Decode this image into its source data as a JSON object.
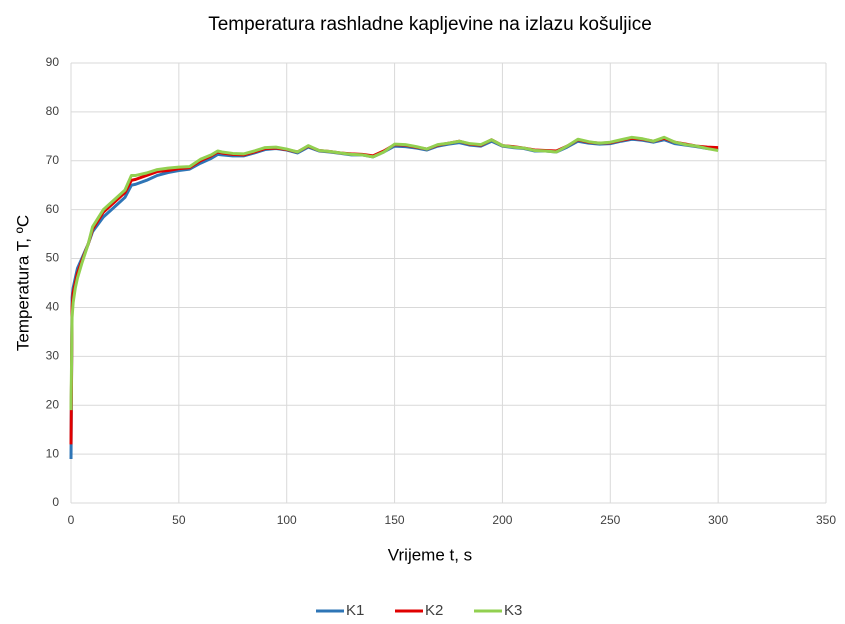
{
  "chart_data": {
    "type": "line",
    "title": "Temperatura rashladne kapljevine na izlazu košuljice",
    "x_label": "Vrijeme t, s",
    "y_label": "Temperatura T, ºC",
    "xlim": [
      0,
      350
    ],
    "xticks": [
      0,
      50,
      100,
      150,
      200,
      250,
      300,
      350
    ],
    "ylim": [
      0,
      90
    ],
    "yticks": [
      0,
      10,
      20,
      30,
      40,
      50,
      60,
      70,
      80,
      90
    ],
    "grid": true,
    "legend": "bottom",
    "x": [
      0,
      0.5,
      1,
      2,
      3,
      5,
      8,
      10,
      15,
      20,
      25,
      28,
      30,
      35,
      40,
      45,
      50,
      55,
      60,
      65,
      68,
      70,
      75,
      80,
      85,
      90,
      95,
      100,
      105,
      110,
      115,
      120,
      125,
      130,
      135,
      140,
      145,
      150,
      155,
      160,
      165,
      170,
      175,
      180,
      185,
      190,
      195,
      200,
      205,
      210,
      215,
      220,
      225,
      230,
      235,
      240,
      245,
      250,
      255,
      260,
      265,
      270,
      275,
      280,
      285,
      290,
      295,
      300
    ],
    "series": [
      {
        "name": "K1",
        "color": "#2e75b6",
        "values": [
          9,
          42,
          44,
          46,
          48,
          50,
          53,
          55.5,
          58.5,
          60.5,
          62.5,
          65,
          65.2,
          66,
          67,
          67.6,
          68,
          68.3,
          69.5,
          70.5,
          71.3,
          71.2,
          71,
          71,
          71.6,
          72.3,
          72.5,
          72.2,
          71.6,
          72.8,
          72,
          71.8,
          71.5,
          71.2,
          71.2,
          70.8,
          71.8,
          73,
          72.9,
          72.6,
          72.2,
          73,
          73.4,
          73.7,
          73.2,
          73,
          74,
          73,
          72.7,
          72.5,
          72,
          72,
          71.8,
          72.8,
          74,
          73.6,
          73.4,
          73.5,
          74,
          74.4,
          74.2,
          73.8,
          74.3,
          73.5,
          73.2,
          72.9,
          72.5,
          72.3
        ]
      },
      {
        "name": "K2",
        "color": "#e00000",
        "values": [
          12,
          40,
          43,
          45,
          47,
          49.5,
          53,
          56,
          59.5,
          61.5,
          63.5,
          66,
          66.2,
          67,
          67.8,
          68,
          68.4,
          68.6,
          70,
          71,
          71.8,
          71.6,
          71.3,
          71.2,
          71.8,
          72.5,
          72.6,
          72.3,
          71.8,
          73,
          72.1,
          71.9,
          71.6,
          71.4,
          71.3,
          71,
          72,
          73.3,
          73.2,
          72.8,
          72.4,
          73.2,
          73.6,
          74,
          73.4,
          73.2,
          74.3,
          73.1,
          72.9,
          72.6,
          72.2,
          72.1,
          72,
          73,
          74.3,
          73.8,
          73.6,
          73.7,
          74.2,
          74.6,
          74.4,
          74,
          74.6,
          73.8,
          73.4,
          73,
          72.8,
          72.7
        ]
      },
      {
        "name": "K3",
        "color": "#92d050",
        "values": [
          19,
          38,
          41,
          44,
          46,
          49,
          53,
          56.5,
          60,
          62,
          64,
          67,
          67,
          67.5,
          68.2,
          68.5,
          68.7,
          68.8,
          70.3,
          71.2,
          72,
          71.8,
          71.5,
          71.4,
          72,
          72.7,
          72.8,
          72.4,
          71.8,
          73.1,
          72.1,
          71.9,
          71.6,
          71.3,
          71.2,
          70.8,
          71.8,
          73.4,
          73.3,
          72.9,
          72.4,
          73.3,
          73.6,
          74,
          73.5,
          73.3,
          74.3,
          73.1,
          72.8,
          72.6,
          72.1,
          72,
          71.8,
          73,
          74.4,
          73.9,
          73.6,
          73.8,
          74.3,
          74.8,
          74.5,
          74,
          74.8,
          73.8,
          73.3,
          73,
          72.5,
          72.1
        ]
      }
    ]
  }
}
